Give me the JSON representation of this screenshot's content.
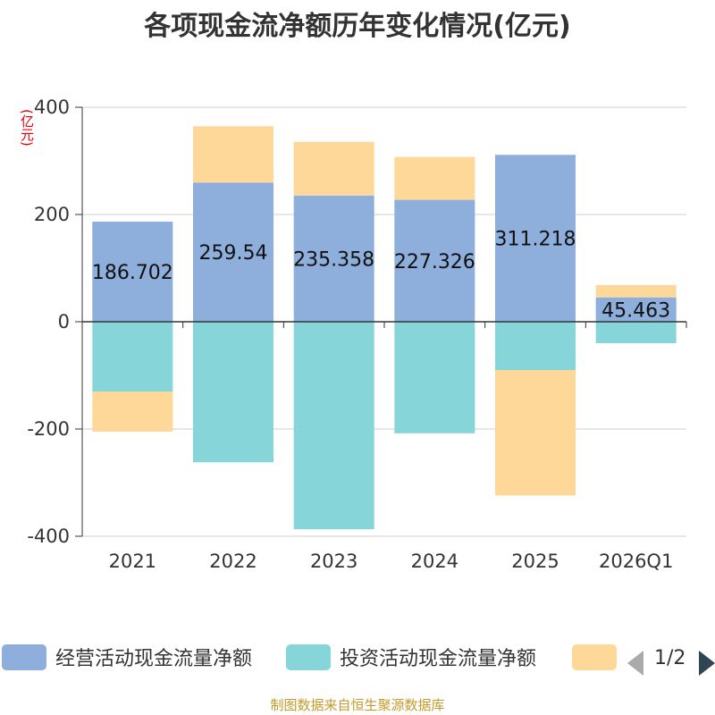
{
  "title": "各项现金流净额历年变化情况(亿元)",
  "source": "制图数据来自恒生聚源数据库",
  "chart_data": {
    "type": "bar",
    "stacked": true,
    "ylabel": "(亿元)",
    "ylim": [
      -400,
      400
    ],
    "yticks": [
      400,
      200,
      0,
      -200,
      -400
    ],
    "categories": [
      "2021",
      "2022",
      "2023",
      "2024",
      "2025",
      "2026Q1"
    ],
    "series": [
      {
        "name": "经营活动现金流量净额",
        "color": "#8eaedb",
        "values": [
          186.702,
          259.54,
          235.358,
          227.326,
          311.218,
          45.463
        ],
        "labels": [
          "186.702",
          "259.54",
          "235.358",
          "227.326",
          "311.218",
          "45.463"
        ]
      },
      {
        "name": "投资活动现金流量净额",
        "color": "#86d5d8",
        "values": [
          -130,
          -262,
          -387,
          -208,
          -90,
          -40
        ]
      },
      {
        "color": "#fed898",
        "values": [
          -75,
          105,
          100,
          80,
          -234,
          23
        ]
      }
    ],
    "legend_placement": "bottom",
    "legend_page": "1/2",
    "grid": true
  }
}
